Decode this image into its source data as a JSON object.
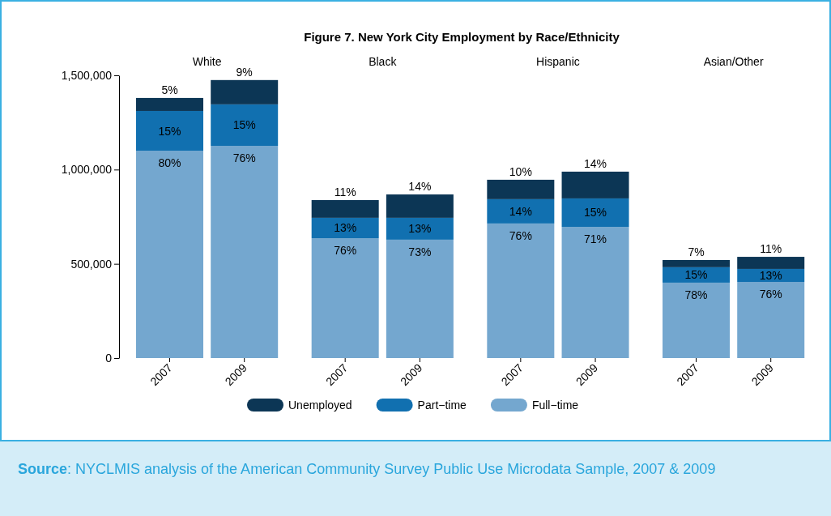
{
  "chart_data": {
    "type": "bar",
    "stacked": true,
    "title": "Figure 7. New York City Employment by Race/Ethnicity",
    "categories": [
      "2007",
      "2009",
      "2007",
      "2009",
      "2007",
      "2009",
      "2007",
      "2009"
    ],
    "series": [
      {
        "name": "Full−time",
        "color": "#74a7cf",
        "values": [
          1100000,
          1126000,
          636000,
          628000,
          714000,
          696000,
          400000,
          404000
        ]
      },
      {
        "name": "Part−time",
        "color": "#1170b0",
        "values": [
          211000,
          220000,
          108000,
          116000,
          129000,
          151000,
          82000,
          69000
        ]
      },
      {
        "name": "Unemployed",
        "color": "#0c3655",
        "values": [
          69000,
          129000,
          94000,
          124000,
          103000,
          142000,
          38000,
          64000
        ]
      }
    ],
    "ylim": [
      0,
      1500000
    ],
    "yticks": [
      0,
      {
        "value": 500000,
        "label": "500,000"
      },
      {
        "value": 1000000,
        "label": "1,000,000"
      },
      {
        "value": 1500000,
        "label": "1,500,000"
      }
    ],
    "grid": false,
    "legend": "bottom",
    "annotations": [
      "White",
      "Black",
      "Hispanic",
      "Asian/Other",
      "80%",
      "15%",
      "5%",
      "76%",
      "15%",
      "9%",
      "76%",
      "13%",
      "11%",
      "73%",
      "13%",
      "14%",
      "76%",
      "14%",
      "10%",
      "71%",
      "15%",
      "14%",
      "78%",
      "15%",
      "7%",
      "76%",
      "13%",
      "11%",
      "Source: NYCLMIS analysis of the American Community Survey Public Use Microdata Sample, 2007 & 2009"
    ]
  }
}
